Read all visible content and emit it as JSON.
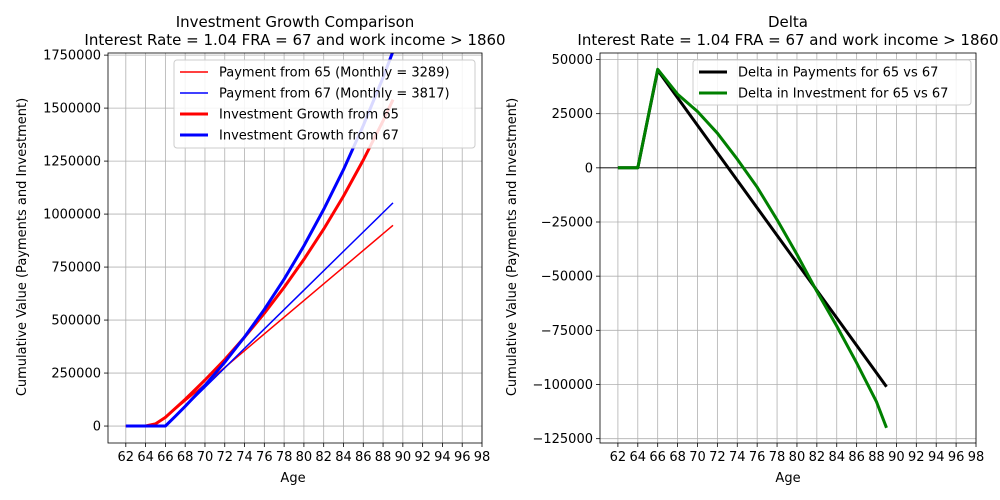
{
  "chart_data": [
    {
      "type": "line",
      "title": "Investment Growth Comparison",
      "subtitle": "Interest Rate = 1.04 FRA = 67 and work income > 1860",
      "xlabel": "Age",
      "ylabel": "Cumulative Value (Payments and Investment)",
      "xlim": [
        60.2,
        98
      ],
      "ylim": [
        -80000,
        1760000
      ],
      "xticks": [
        62,
        64,
        66,
        68,
        70,
        72,
        74,
        76,
        78,
        80,
        82,
        84,
        86,
        88,
        90,
        92,
        94,
        96,
        98
      ],
      "yticks": [
        0,
        250000,
        500000,
        750000,
        1000000,
        1250000,
        1500000,
        1750000
      ],
      "ytick_labels": [
        "0",
        "250000",
        "500000",
        "750000",
        "1000000",
        "1250000",
        "1500000",
        "1750000"
      ],
      "grid": true,
      "legend": "top-right",
      "series": [
        {
          "name": "Payment from  65 (Monthly = 3289)",
          "color": "#ff0000",
          "width": 1.5,
          "x": [
            62,
            64,
            65,
            66,
            70,
            75,
            80,
            85,
            89
          ],
          "y": [
            0,
            0,
            10000,
            40000,
            197000,
            395000,
            592000,
            789000,
            947000
          ]
        },
        {
          "name": "Payment from  67 (Monthly = 3817)",
          "color": "#0000ff",
          "width": 1.5,
          "x": [
            62,
            64,
            66,
            67,
            70,
            75,
            80,
            85,
            89
          ],
          "y": [
            0,
            0,
            0,
            46000,
            183000,
            412000,
            641000,
            870000,
            1053000
          ]
        },
        {
          "name": "Investment Growth from 65",
          "color": "#ff0000",
          "width": 3,
          "x": [
            62,
            64,
            65,
            66,
            68,
            70,
            72,
            74,
            76,
            78,
            80,
            82,
            84,
            86,
            88,
            89
          ],
          "y": [
            0,
            0,
            10000,
            41000,
            126000,
            217000,
            314000,
            419000,
            532000,
            654000,
            786000,
            929000,
            1085000,
            1255000,
            1440000,
            1540000
          ]
        },
        {
          "name": "Investment Growth from 67",
          "color": "#0000ff",
          "width": 3,
          "x": [
            62,
            64,
            66,
            67,
            68,
            70,
            72,
            74,
            76,
            78,
            80,
            82,
            84,
            86,
            88,
            89
          ],
          "y": [
            0,
            0,
            0,
            46000,
            93000,
            192000,
            301000,
            420000,
            550000,
            693000,
            850000,
            1022000,
            1210000,
            1418000,
            1645000,
            1768000
          ]
        }
      ]
    },
    {
      "type": "line",
      "title": "Delta",
      "subtitle": "Interest Rate = 1.04 FRA = 67 and work income > 1860",
      "xlabel": "Age",
      "ylabel": "Cumulative Value (Payments and Investment)",
      "xlim": [
        60.2,
        98
      ],
      "ylim": [
        -127000,
        53000
      ],
      "xticks": [
        62,
        64,
        66,
        68,
        70,
        72,
        74,
        76,
        78,
        80,
        82,
        84,
        86,
        88,
        90,
        92,
        94,
        96,
        98
      ],
      "yticks": [
        -125000,
        -100000,
        -75000,
        -50000,
        -25000,
        0,
        25000,
        50000
      ],
      "ytick_labels": [
        "−125000",
        "−100000",
        "−75000",
        "−50000",
        "−25000",
        "0",
        "25000",
        "50000"
      ],
      "grid": true,
      "zero_line": true,
      "legend": "top-right",
      "series": [
        {
          "name": "Delta in Payments for 65 vs 67",
          "color": "#000000",
          "width": 3,
          "x": [
            62,
            64,
            66,
            89
          ],
          "y": [
            0,
            0,
            45000,
            -101000
          ]
        },
        {
          "name": "Delta in Investment for 65 vs 67",
          "color": "#008000",
          "width": 3,
          "x": [
            62,
            64,
            66,
            68,
            70,
            72,
            74,
            76,
            78,
            80,
            82,
            84,
            86,
            88,
            89
          ],
          "y": [
            0,
            0,
            45500,
            34000,
            26000,
            16000,
            4000,
            -9000,
            -24000,
            -40000,
            -57000,
            -73000,
            -90000,
            -108000,
            -120000
          ]
        }
      ]
    }
  ]
}
